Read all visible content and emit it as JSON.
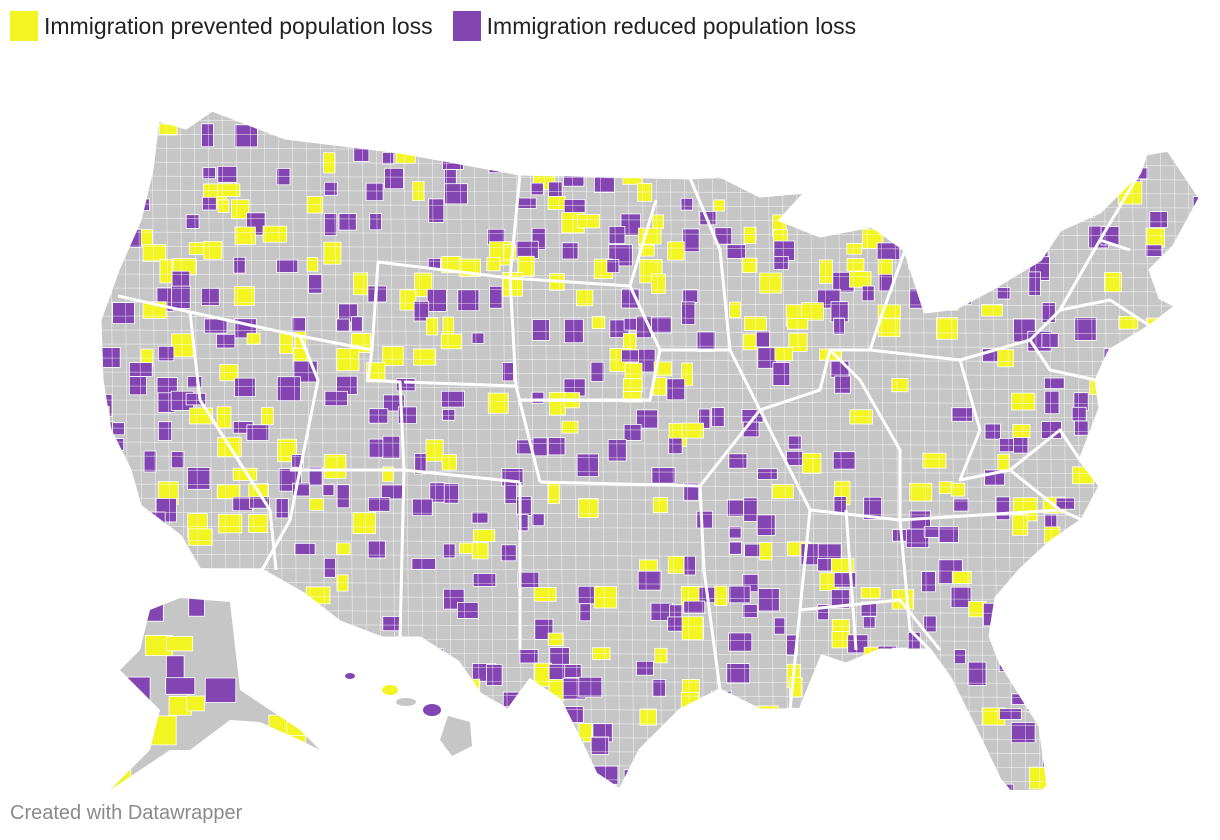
{
  "legend": {
    "items": [
      {
        "label": "Immigration prevented population loss",
        "color": "#f2f521"
      },
      {
        "label": "Immigration reduced population loss",
        "color": "#8345b2"
      }
    ]
  },
  "map": {
    "base_color": "#c6c6c6",
    "border_color": "#ffffff",
    "regions": [
      "contiguous-us",
      "alaska",
      "hawaii"
    ]
  },
  "footer": {
    "credit": "Created with Datawrapper"
  }
}
